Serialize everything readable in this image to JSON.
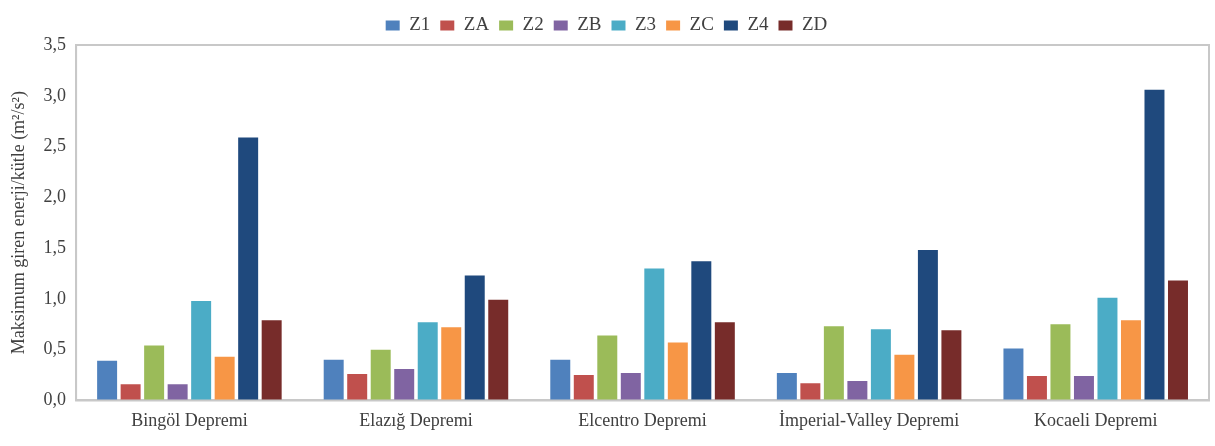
{
  "chart_data": {
    "type": "bar",
    "ylabel": "Maksimum giren enerji/kütle (m²/s²)",
    "categories": [
      "Bingöl Depremi",
      "Elazığ Depremi",
      "Elcentro Depremi",
      "İmperial-Valley Depremi",
      "Kocaeli Depremi"
    ],
    "series": [
      {
        "name": "Z1",
        "color": "#4f81bd",
        "values": [
          0.39,
          0.4,
          0.4,
          0.27,
          0.51
        ]
      },
      {
        "name": "ZA",
        "color": "#c0504d",
        "values": [
          0.16,
          0.26,
          0.25,
          0.17,
          0.24
        ]
      },
      {
        "name": "Z2",
        "color": "#9bbb59",
        "values": [
          0.54,
          0.5,
          0.64,
          0.73,
          0.75
        ]
      },
      {
        "name": "ZB",
        "color": "#8064a2",
        "values": [
          0.16,
          0.31,
          0.27,
          0.19,
          0.24
        ]
      },
      {
        "name": "Z3",
        "color": "#4bacc6",
        "values": [
          0.98,
          0.77,
          1.3,
          0.7,
          1.01
        ]
      },
      {
        "name": "ZC",
        "color": "#f79646",
        "values": [
          0.43,
          0.72,
          0.57,
          0.45,
          0.79
        ]
      },
      {
        "name": "Z4",
        "color": "#1f497d",
        "values": [
          2.59,
          1.23,
          1.37,
          1.48,
          3.06
        ]
      },
      {
        "name": "ZD",
        "color": "#772c2a",
        "values": [
          0.79,
          0.99,
          0.77,
          0.69,
          1.18
        ]
      }
    ],
    "ylim": [
      0,
      3.5
    ],
    "yticks": [
      {
        "value": 0,
        "label": "0,0"
      },
      {
        "value": 0.5,
        "label": "0,5"
      },
      {
        "value": 1,
        "label": "1,0"
      },
      {
        "value": 1.5,
        "label": "1,5"
      },
      {
        "value": 2,
        "label": "2,0"
      },
      {
        "value": 2.5,
        "label": "2,5"
      },
      {
        "value": 3,
        "label": "3,0"
      },
      {
        "value": 3.5,
        "label": "3,5"
      }
    ],
    "grid": false,
    "legend": "top"
  }
}
